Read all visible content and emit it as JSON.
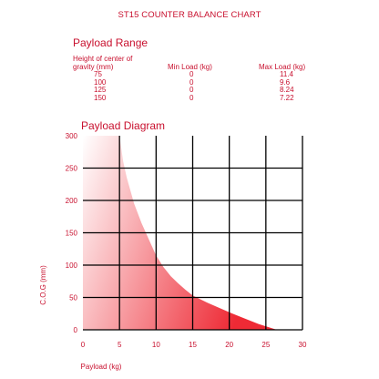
{
  "header": {
    "title": "ST15 COUNTER BALANCE CHART"
  },
  "payload_range": {
    "title": "Payload Range",
    "headers": [
      "Height of center of gravity (mm)",
      "Min Load (kg)",
      "Max Load (kg)"
    ],
    "rows": [
      [
        "75",
        "0",
        "11.4"
      ],
      [
        "100",
        "0",
        "9.6"
      ],
      [
        "125",
        "0",
        "8.24"
      ],
      [
        "150",
        "0",
        "7.22"
      ]
    ]
  },
  "chart_data": {
    "type": "area",
    "title": "Payload Diagram",
    "xlabel": "Payload (kg)",
    "ylabel": "C.O.G (mm)",
    "xlim": [
      0,
      30
    ],
    "ylim": [
      0,
      300
    ],
    "x_ticks": [
      0,
      5,
      10,
      15,
      20,
      25,
      30
    ],
    "y_ticks": [
      0,
      50,
      100,
      150,
      200,
      250,
      300
    ],
    "grid": true,
    "series": [
      {
        "x": [
          5,
          5.5,
          6,
          7,
          8,
          9,
          10,
          11,
          12,
          13,
          14,
          15,
          17,
          20,
          22,
          24,
          26.5
        ],
        "y": [
          300,
          260,
          235,
          195,
          165,
          140,
          115,
          97,
          83,
          72,
          62,
          53,
          42,
          27,
          18,
          9,
          0
        ]
      }
    ],
    "colors": {
      "fill_light": "#ffffff",
      "fill_dark": "#ee2a35",
      "grid": "#000000",
      "text": "#c8102e"
    }
  }
}
